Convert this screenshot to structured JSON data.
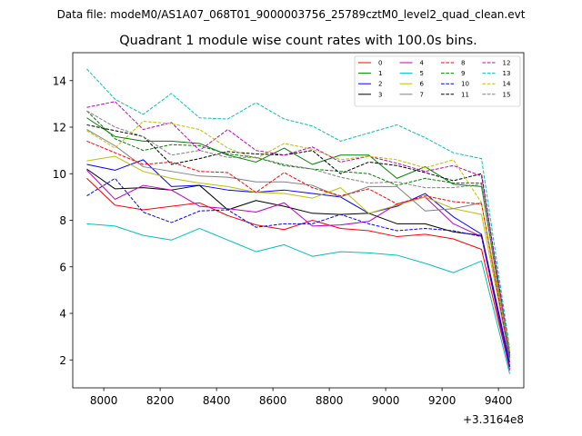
{
  "suptitle": "Data file: modeM0/AS1A07_068T01_9000003756_25789cztM0_level2_quad_clean.evt",
  "chart_data": {
    "type": "line",
    "title": "Quadrant 1 module wise count rates with 100.0s bins.",
    "xlabel": "",
    "ylabel": "",
    "x_offset_label": "+3.3164e8",
    "x_offset": 331640000,
    "xlim": [
      7890,
      9490
    ],
    "ylim": [
      0.8,
      15.2
    ],
    "x_ticks": [
      8000,
      8200,
      8400,
      8600,
      8800,
      9000,
      9200,
      9400
    ],
    "y_ticks": [
      2,
      4,
      6,
      8,
      10,
      12,
      14
    ],
    "x": [
      7940,
      8040,
      8140,
      8240,
      8340,
      8440,
      8540,
      8640,
      8740,
      8840,
      8940,
      9040,
      9140,
      9240,
      9340,
      9440
    ],
    "legend_location": "upper-right",
    "legend_columns": 4,
    "series": [
      {
        "name": "0",
        "color": "#ff0000",
        "dash": "solid",
        "values": [
          9.8,
          8.65,
          8.45,
          8.6,
          8.75,
          8.2,
          7.8,
          7.6,
          8.0,
          7.65,
          7.55,
          7.3,
          7.4,
          7.2,
          6.75,
          1.6
        ]
      },
      {
        "name": "1",
        "color": "#008000",
        "dash": "solid",
        "values": [
          12.4,
          11.6,
          11.4,
          11.4,
          11.3,
          10.8,
          10.5,
          11.1,
          10.4,
          10.8,
          10.8,
          9.8,
          10.3,
          9.55,
          9.45,
          2.2
        ]
      },
      {
        "name": "2",
        "color": "#0000ff",
        "dash": "solid",
        "values": [
          10.4,
          10.15,
          10.6,
          9.45,
          9.5,
          9.3,
          9.2,
          9.3,
          9.15,
          9.0,
          8.3,
          8.6,
          9.15,
          8.15,
          7.4,
          1.9
        ]
      },
      {
        "name": "3",
        "color": "#000000",
        "dash": "solid",
        "values": [
          10.2,
          9.35,
          9.4,
          9.3,
          9.5,
          8.45,
          8.85,
          8.6,
          8.3,
          8.25,
          8.3,
          7.85,
          7.85,
          7.5,
          7.35,
          1.7
        ]
      },
      {
        "name": "4",
        "color": "#bf00bf",
        "dash": "solid",
        "values": [
          10.15,
          8.9,
          9.5,
          9.3,
          8.6,
          8.5,
          8.35,
          8.75,
          7.75,
          7.8,
          7.95,
          8.7,
          9.0,
          7.85,
          7.3,
          1.55
        ]
      },
      {
        "name": "5",
        "color": "#00bfbf",
        "dash": "solid",
        "values": [
          7.85,
          7.75,
          7.35,
          7.15,
          7.65,
          7.15,
          6.65,
          6.95,
          6.45,
          6.65,
          6.6,
          6.5,
          6.15,
          5.75,
          6.25,
          1.4
        ]
      },
      {
        "name": "6",
        "color": "#bfbf00",
        "dash": "solid",
        "values": [
          10.55,
          10.75,
          10.1,
          9.8,
          9.6,
          9.45,
          9.2,
          9.15,
          8.95,
          9.4,
          8.3,
          8.65,
          9.0,
          8.5,
          8.25,
          2.05
        ]
      },
      {
        "name": "7",
        "color": "#808080",
        "dash": "solid",
        "values": [
          11.9,
          11.2,
          10.3,
          10.1,
          9.9,
          9.85,
          9.65,
          9.65,
          9.5,
          9.0,
          9.45,
          9.45,
          8.4,
          8.5,
          8.75,
          2.0
        ]
      },
      {
        "name": "8",
        "color": "#ff0000",
        "dash": "dashed",
        "values": [
          11.4,
          10.9,
          10.4,
          10.5,
          10.1,
          10.05,
          9.2,
          10.05,
          9.4,
          9.05,
          9.35,
          8.7,
          9.05,
          8.8,
          8.7,
          2.1
        ]
      },
      {
        "name": "9",
        "color": "#008000",
        "dash": "dashed",
        "values": [
          12.7,
          11.5,
          11.0,
          11.25,
          11.2,
          10.85,
          10.7,
          10.35,
          10.2,
          10.1,
          10.0,
          9.5,
          9.8,
          9.6,
          9.6,
          2.15
        ]
      },
      {
        "name": "10",
        "color": "#0000ff",
        "dash": "dashed",
        "values": [
          9.05,
          9.8,
          8.35,
          7.9,
          8.4,
          8.45,
          7.7,
          7.85,
          7.85,
          8.25,
          7.85,
          7.55,
          7.65,
          7.55,
          7.3,
          1.75
        ]
      },
      {
        "name": "11",
        "color": "#000000",
        "dash": "dashed",
        "values": [
          12.1,
          11.85,
          11.6,
          10.4,
          10.65,
          10.95,
          10.85,
          10.8,
          11.0,
          10.0,
          10.5,
          10.35,
          10.05,
          9.7,
          10.0,
          2.3
        ]
      },
      {
        "name": "12",
        "color": "#bf00bf",
        "dash": "dashed",
        "values": [
          12.85,
          13.1,
          11.9,
          12.2,
          11.0,
          11.9,
          11.0,
          10.8,
          11.15,
          10.5,
          10.75,
          10.45,
          10.1,
          10.35,
          9.9,
          2.35
        ]
      },
      {
        "name": "13",
        "color": "#00bfbf",
        "dash": "dashed",
        "values": [
          14.5,
          13.2,
          12.55,
          13.45,
          12.4,
          12.35,
          13.05,
          12.35,
          12.05,
          11.4,
          11.75,
          12.1,
          11.55,
          10.9,
          10.65,
          2.5
        ]
      },
      {
        "name": "14",
        "color": "#bfbf00",
        "dash": "dashed",
        "values": [
          11.85,
          11.1,
          12.25,
          12.15,
          11.9,
          11.1,
          10.65,
          11.3,
          11.05,
          10.6,
          10.75,
          10.6,
          10.25,
          10.6,
          8.75,
          2.4
        ]
      },
      {
        "name": "15",
        "color": "#808080",
        "dash": "dashed",
        "values": [
          12.7,
          12.0,
          11.6,
          10.8,
          11.0,
          10.7,
          10.7,
          10.4,
          10.2,
          9.85,
          9.6,
          9.65,
          9.4,
          9.4,
          9.55,
          2.25
        ]
      }
    ]
  }
}
